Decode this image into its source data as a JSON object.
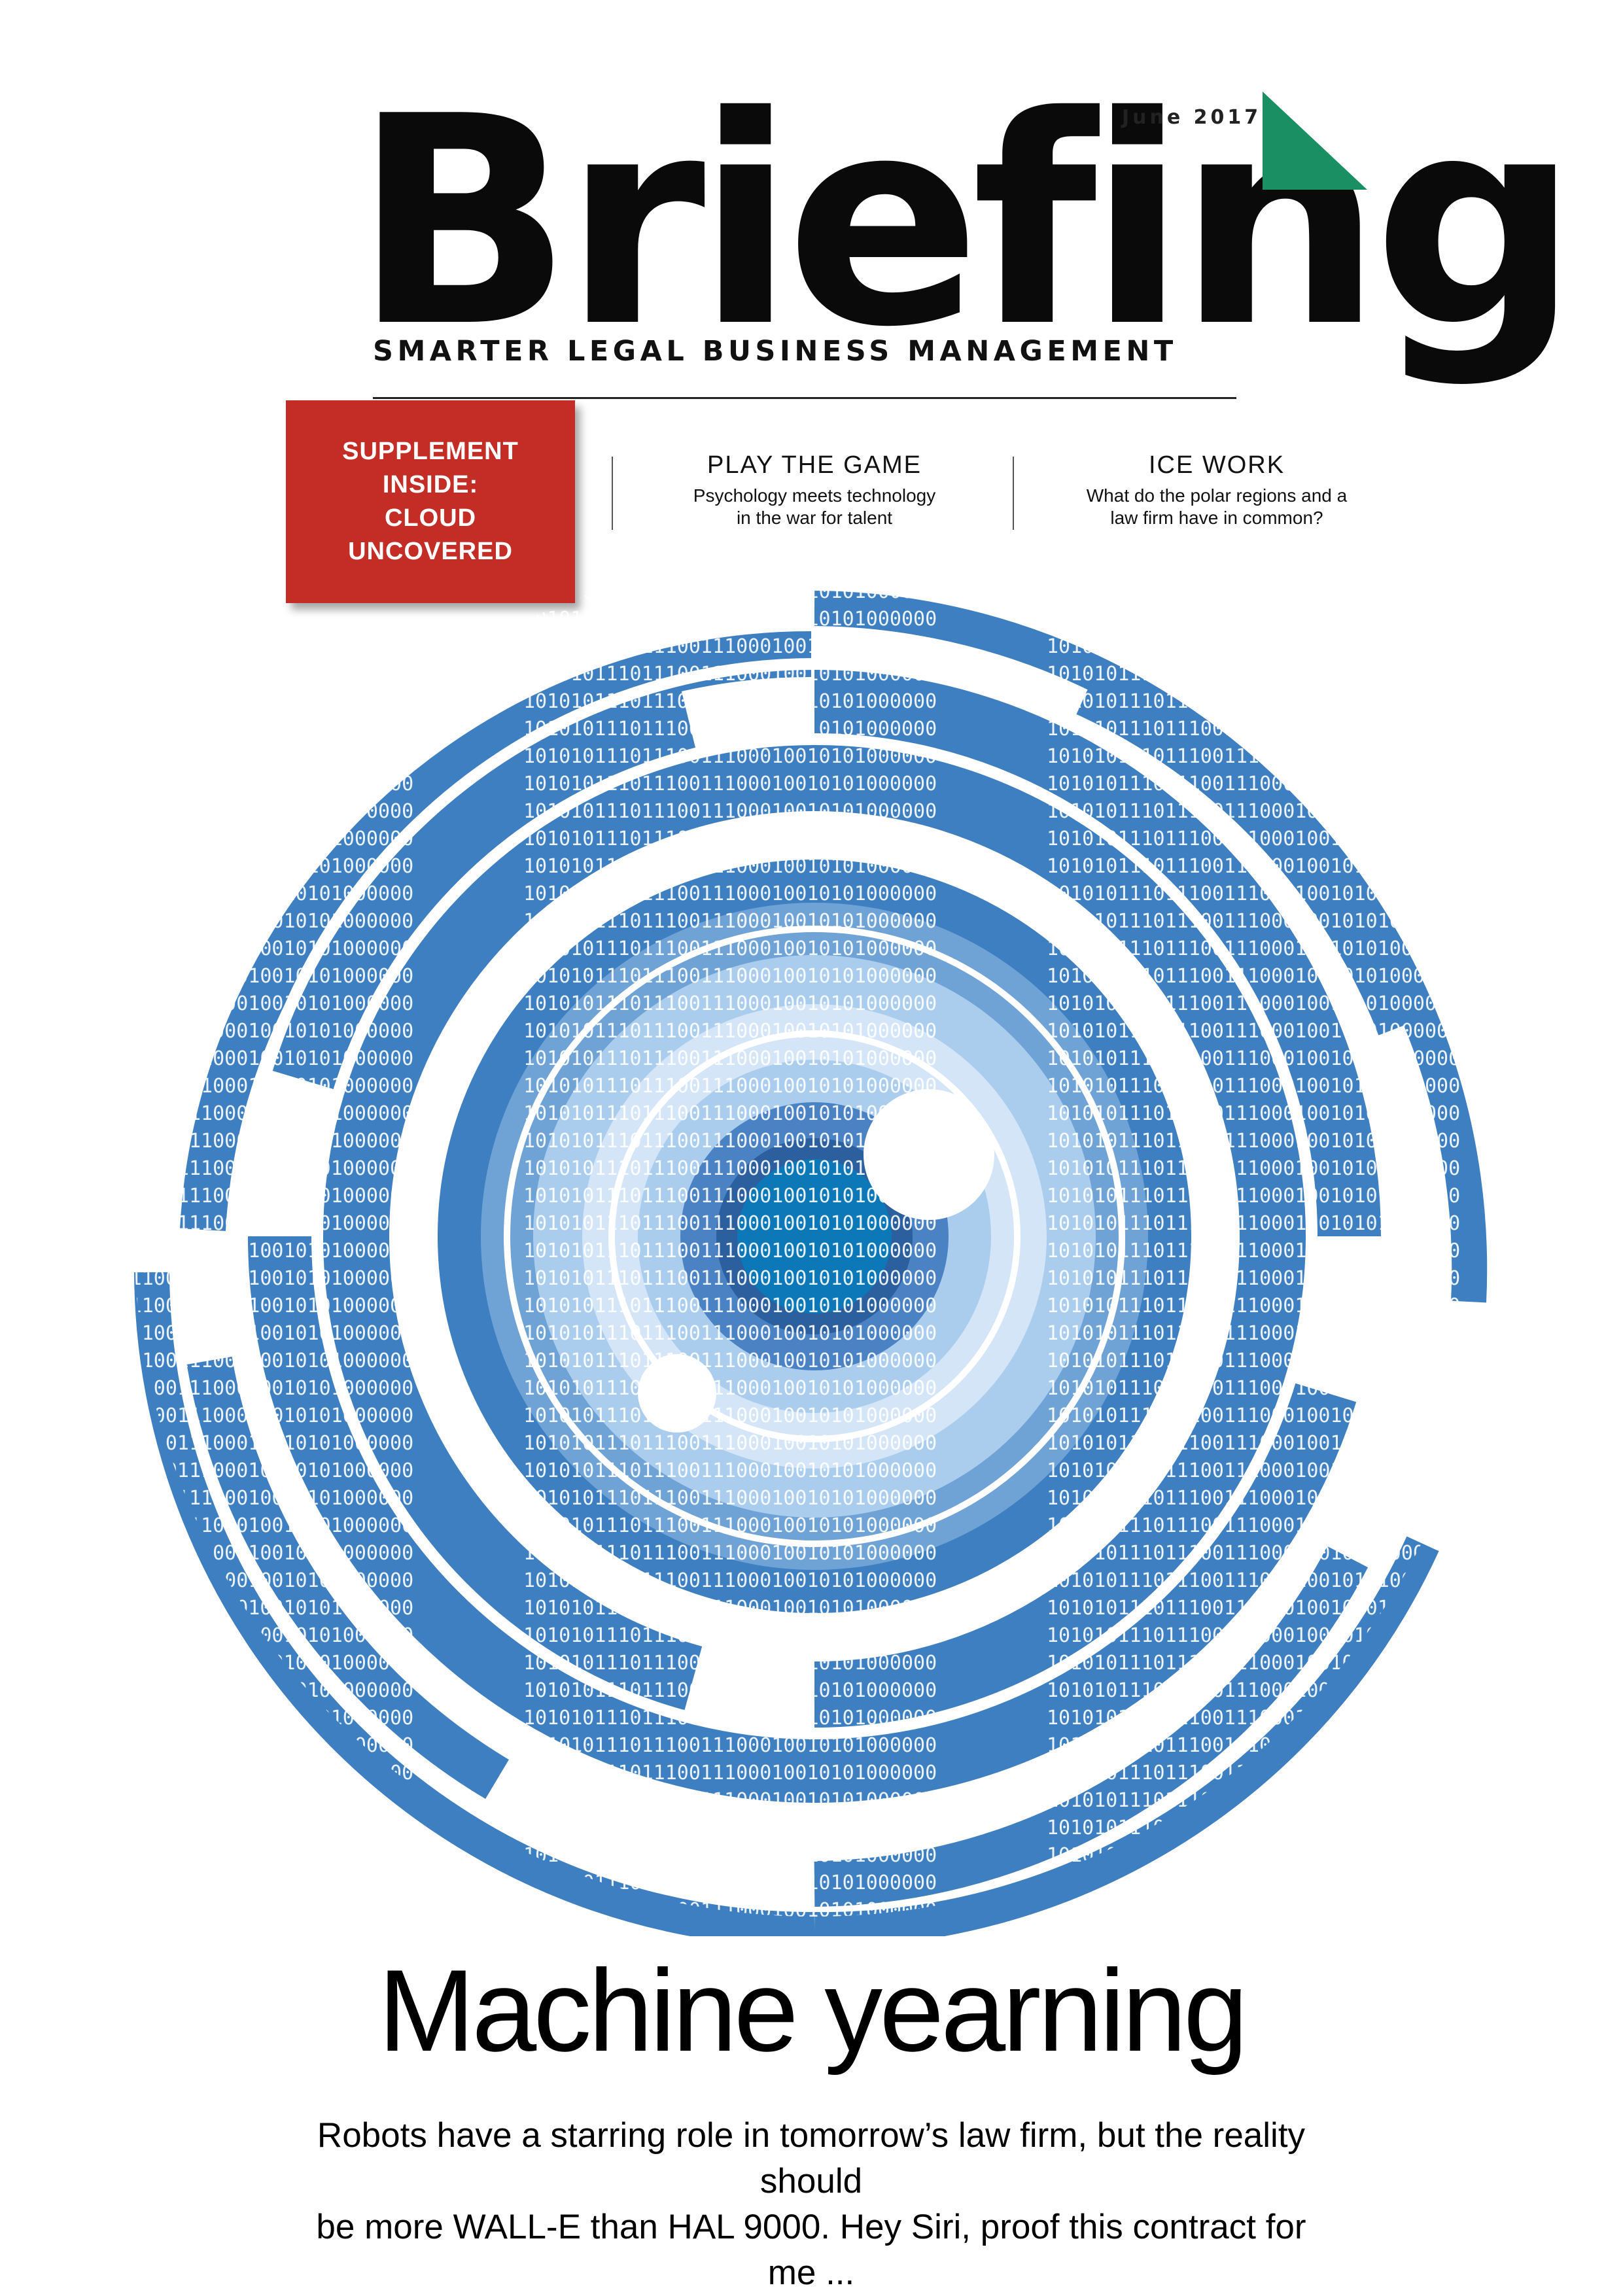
{
  "masthead": {
    "title": "Briefing",
    "tagline": "SMARTER LEGAL BUSINESS MANAGEMENT",
    "date": "June 2017"
  },
  "supplement": {
    "lines": [
      "SUPPLEMENT",
      "INSIDE:",
      "CLOUD",
      "UNCOVERED"
    ]
  },
  "teasers": [
    {
      "title": "PLAY THE GAME",
      "desc_lines": [
        "Psychology meets technology",
        "in the war for talent"
      ]
    },
    {
      "title": "ICE WORK",
      "desc_lines": [
        "What do the polar regions and a",
        "law firm have in common?"
      ]
    }
  ],
  "cover_story": {
    "headline": "Machine yearning",
    "standfirst_lines": [
      "Robots have a starring role in tomorrow’s law firm, but the reality should",
      "be more WALL-E than HAL 9000. Hey Siri, proof this contract for me ..."
    ]
  },
  "artwork": {
    "binary_text": "10101011101110011100010010101000000",
    "colors": {
      "outer": "#3d7fc1",
      "ring_mid": "#6fa3d6",
      "ring_light": "#aacdee",
      "ring_pale": "#d3e5f6",
      "core_mid": "#4a82c3",
      "core_dark": "#2b5f9e",
      "pupil": "#0d78b8",
      "accent_green": "#1a8f64",
      "supplement_red": "#c42c26"
    }
  }
}
